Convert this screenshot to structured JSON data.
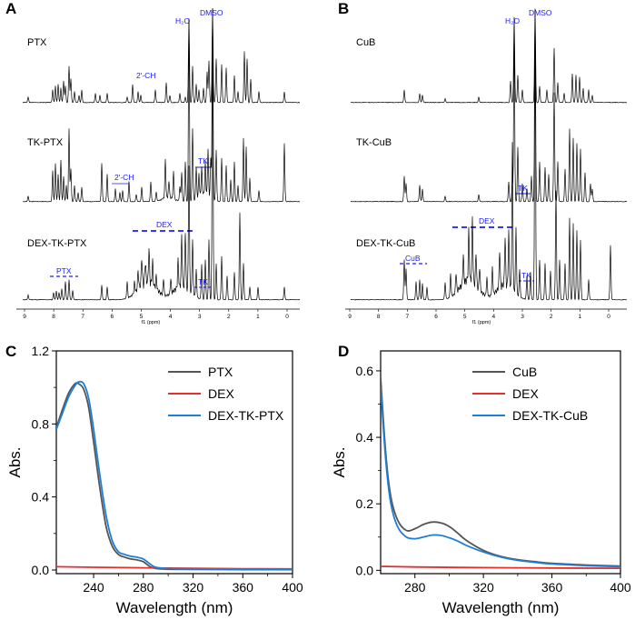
{
  "panels": {
    "A": "A",
    "B": "B",
    "C": "C",
    "D": "D"
  },
  "nmr": [
    {
      "id": "A",
      "traces": [
        {
          "label": "PTX",
          "annotations": [
            "2'-CH",
            "H2O",
            "DMSO"
          ]
        },
        {
          "label": "TK-PTX",
          "annotations": [
            "2'-CH",
            "TK"
          ]
        },
        {
          "label": "DEX-TK-PTX",
          "annotations": [
            "DEX",
            "PTX",
            "TK"
          ]
        }
      ],
      "axis": {
        "ticks": [
          "9",
          "8",
          "7",
          "6",
          "5",
          "4",
          "3",
          "2",
          "1",
          "0"
        ],
        "unit": "f1 (ppm)"
      },
      "solvent": {
        "h2o": "H₂O",
        "dmso": "DMSO"
      }
    },
    {
      "id": "B",
      "traces": [
        {
          "label": "CuB"
        },
        {
          "label": "TK-CuB",
          "annotations": [
            "TK"
          ]
        },
        {
          "label": "DEX-TK-CuB",
          "annotations": [
            "DEX",
            "CuB",
            "TK"
          ]
        }
      ],
      "axis": {
        "ticks": [
          "9",
          "8",
          "7",
          "6",
          "5",
          "4",
          "3",
          "2",
          "1",
          "0"
        ],
        "unit": "f1 (ppm)"
      },
      "solvent": {
        "h2o": "H₂O",
        "dmso": "DMSO"
      }
    }
  ],
  "nmr_labels": {
    "A_ptx": "PTX",
    "A_tkptx": "TK-PTX",
    "A_dextkptx": "DEX-TK-PTX",
    "A_2ch_1": "2'-CH",
    "A_2ch_2": "2'-CH",
    "A_tk_1": "TK",
    "A_dex": "DEX",
    "A_ptx_ann": "PTX",
    "A_tk_2": "TK",
    "B_cub": "CuB",
    "B_tkcub": "TK-CuB",
    "B_dextkcub": "DEX-TK-CuB",
    "B_tk_1": "TK",
    "B_dex": "DEX",
    "B_cub_ann": "CuB",
    "B_tk_2": "TK"
  },
  "chart_data": [
    {
      "panel": "C",
      "type": "line",
      "xlabel": "Wavelength (nm)",
      "ylabel": "Abs.",
      "xlim": [
        210,
        400
      ],
      "ylim": [
        -0.02,
        1.2
      ],
      "xticks": [
        240,
        280,
        320,
        360,
        400
      ],
      "yticks": [
        0.0,
        0.4,
        0.8,
        1.2
      ],
      "ytick_labels": [
        "0.0",
        "0.4",
        "0.8",
        "1.2"
      ],
      "legend_position": "top-right",
      "series": [
        {
          "name": "PTX",
          "color": "#555555",
          "x": [
            210,
            215,
            220,
            225,
            228,
            232,
            236,
            240,
            245,
            250,
            255,
            260,
            265,
            270,
            275,
            280,
            285,
            290,
            300,
            320,
            360,
            400
          ],
          "y": [
            0.78,
            0.88,
            0.97,
            1.02,
            1.02,
            0.99,
            0.89,
            0.7,
            0.45,
            0.24,
            0.13,
            0.085,
            0.07,
            0.06,
            0.055,
            0.045,
            0.02,
            0.008,
            0.004,
            0.003,
            0.002,
            0.002
          ]
        },
        {
          "name": "DEX",
          "color": "#e03030",
          "x": [
            210,
            240,
            280,
            320,
            360,
            400
          ],
          "y": [
            0.018,
            0.015,
            0.012,
            0.009,
            0.007,
            0.006
          ]
        },
        {
          "name": "DEX-TK-PTX",
          "color": "#1f7fd6",
          "x": [
            210,
            215,
            220,
            225,
            228,
            232,
            236,
            240,
            245,
            250,
            255,
            260,
            265,
            270,
            275,
            280,
            285,
            290,
            300,
            320,
            360,
            400
          ],
          "y": [
            0.77,
            0.86,
            0.95,
            1.01,
            1.03,
            1.02,
            0.94,
            0.77,
            0.52,
            0.3,
            0.16,
            0.1,
            0.085,
            0.075,
            0.07,
            0.06,
            0.035,
            0.015,
            0.008,
            0.006,
            0.004,
            0.004
          ]
        }
      ]
    },
    {
      "panel": "D",
      "type": "line",
      "xlabel": "Wavelength (nm)",
      "ylabel": "Abs.",
      "xlim": [
        260,
        400
      ],
      "ylim": [
        -0.01,
        0.66
      ],
      "xticks": [
        280,
        320,
        360,
        400
      ],
      "yticks": [
        0.0,
        0.2,
        0.4,
        0.6
      ],
      "ytick_labels": [
        "0.0",
        "0.2",
        "0.4",
        "0.6"
      ],
      "legend_position": "top-right",
      "series": [
        {
          "name": "CuB",
          "color": "#555555",
          "x": [
            260,
            263,
            266,
            270,
            275,
            280,
            285,
            290,
            295,
            300,
            305,
            310,
            320,
            330,
            340,
            350,
            360,
            380,
            400
          ],
          "y": [
            0.58,
            0.35,
            0.22,
            0.15,
            0.12,
            0.125,
            0.138,
            0.145,
            0.143,
            0.132,
            0.112,
            0.09,
            0.06,
            0.042,
            0.032,
            0.026,
            0.021,
            0.016,
            0.013
          ]
        },
        {
          "name": "DEX",
          "color": "#e03030",
          "x": [
            260,
            280,
            320,
            360,
            400
          ],
          "y": [
            0.012,
            0.01,
            0.008,
            0.007,
            0.006
          ]
        },
        {
          "name": "DEX-TK-CuB",
          "color": "#1f7fd6",
          "x": [
            260,
            263,
            266,
            270,
            275,
            280,
            285,
            290,
            295,
            300,
            305,
            310,
            320,
            330,
            340,
            350,
            360,
            380,
            400
          ],
          "y": [
            0.55,
            0.33,
            0.2,
            0.13,
            0.1,
            0.095,
            0.1,
            0.106,
            0.105,
            0.098,
            0.088,
            0.075,
            0.055,
            0.04,
            0.03,
            0.024,
            0.019,
            0.014,
            0.011
          ]
        }
      ]
    }
  ]
}
